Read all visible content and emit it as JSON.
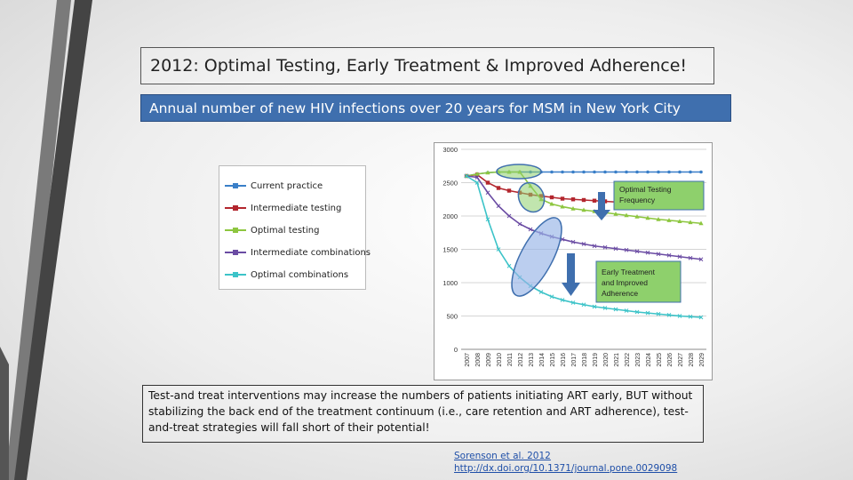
{
  "slide": {
    "title": "2012: Optimal Testing, Early Treatment & Improved Adherence!",
    "subtitle": "Annual number of new HIV infections over 20 years for MSM in New York City",
    "body_text": "Test-and treat interventions may increase the numbers of patients initiating ART early, BUT without stabilizing the back end of the treatment continuum (i.e., care retention and ART adherence), test-and-treat strategies will fall short of their potential!",
    "reference": {
      "author": "Sorenson et al. 2012",
      "link": "http://dx.doi.org/10.1371/journal.pone.0029098"
    }
  },
  "legend": [
    {
      "label": "Current practice",
      "color": "#3a7fc8"
    },
    {
      "label": "Intermediate testing",
      "color": "#b3262e"
    },
    {
      "label": "Optimal testing",
      "color": "#8dc63f"
    },
    {
      "label": "Intermediate combinations",
      "color": "#6a4ba3"
    },
    {
      "label": "Optimal combinations",
      "color": "#3cc3c8"
    }
  ],
  "annotations": {
    "optimal_testing_box": "Optimal Testing Frequency",
    "early_treatment_box": "Early Treatment and Improved Adherence",
    "box_color": "#8ed06c",
    "box_border": "#3f6fae",
    "arrow_color": "#3f6fae"
  },
  "chart_data": {
    "type": "line",
    "x": [
      "2007",
      "2008",
      "2009",
      "2010",
      "2011",
      "2012",
      "2013",
      "2014",
      "2015",
      "2016",
      "2017",
      "2018",
      "2019",
      "2020",
      "2021",
      "2022",
      "2023",
      "2024",
      "2025",
      "2026",
      "2027",
      "2028",
      "2029"
    ],
    "ylim": [
      0,
      3000
    ],
    "yticks": [
      0,
      500,
      1000,
      1500,
      2000,
      2500,
      3000
    ],
    "grid": true,
    "legend_position": "left",
    "series": [
      {
        "name": "Current practice",
        "color": "#3a7fc8",
        "values": [
          2600,
          2630,
          2650,
          2660,
          2660,
          2660,
          2660,
          2660,
          2660,
          2660,
          2660,
          2660,
          2660,
          2660,
          2660,
          2660,
          2660,
          2660,
          2660,
          2660,
          2660,
          2660,
          2660
        ]
      },
      {
        "name": "Intermediate testing",
        "color": "#b3262e",
        "values": [
          2600,
          2620,
          2500,
          2420,
          2380,
          2350,
          2320,
          2300,
          2280,
          2260,
          2250,
          2240,
          2230,
          2220,
          2210,
          2200,
          2195,
          2190,
          2185,
          2180,
          2175,
          2170,
          2165
        ]
      },
      {
        "name": "Optimal testing",
        "color": "#8dc63f",
        "values": [
          2600,
          2630,
          2650,
          2660,
          2660,
          2660,
          2450,
          2250,
          2180,
          2140,
          2110,
          2090,
          2070,
          2050,
          2030,
          2010,
          1990,
          1970,
          1950,
          1935,
          1920,
          1905,
          1890
        ]
      },
      {
        "name": "Intermediate combinations",
        "color": "#6a4ba3",
        "values": [
          2600,
          2580,
          2350,
          2150,
          2000,
          1880,
          1800,
          1740,
          1690,
          1650,
          1610,
          1580,
          1550,
          1530,
          1510,
          1490,
          1470,
          1450,
          1430,
          1410,
          1390,
          1370,
          1350
        ]
      },
      {
        "name": "Optimal combinations",
        "color": "#3cc3c8",
        "values": [
          2600,
          2500,
          1950,
          1500,
          1250,
          1080,
          950,
          860,
          790,
          740,
          700,
          670,
          640,
          620,
          600,
          580,
          560,
          545,
          530,
          515,
          500,
          490,
          480
        ]
      }
    ]
  }
}
